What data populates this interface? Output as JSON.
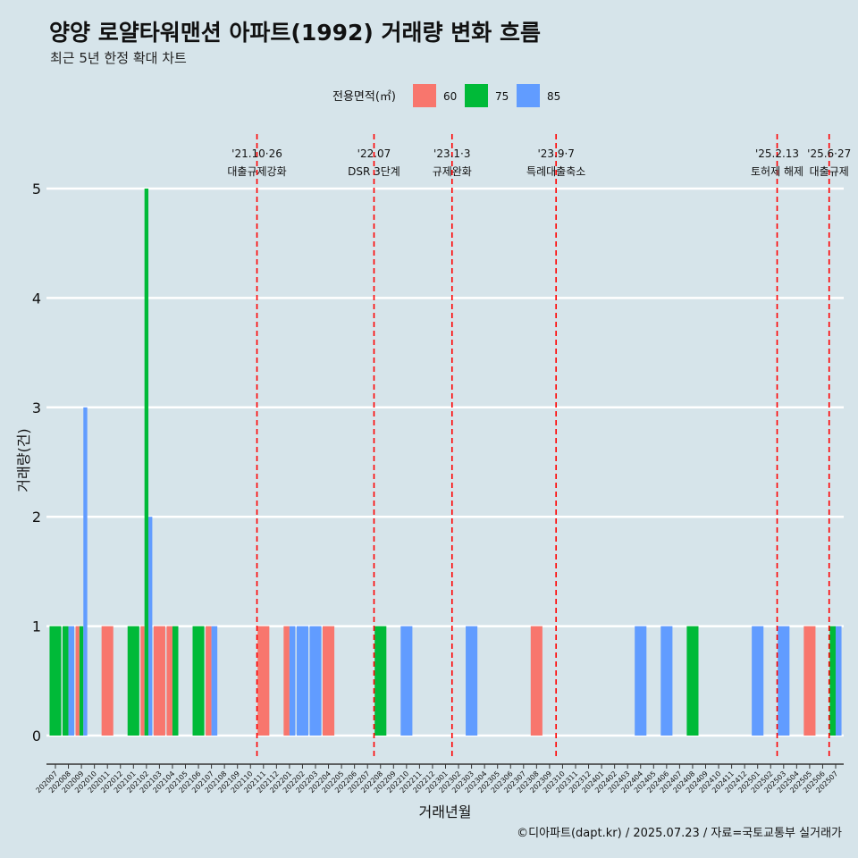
{
  "chart_data": {
    "type": "bar",
    "title": "양양 로얄타워맨션 아파트(1992) 거래량 변화 흐름",
    "subtitle": "최근 5년 한정 확대 차트",
    "xlabel": "거래년월",
    "ylabel": "거래량(건)",
    "ylim": [
      0,
      5
    ],
    "yticks": [
      0,
      1,
      2,
      3,
      4,
      5
    ],
    "grid": true,
    "legend": {
      "title": "전용면적(㎡)",
      "position": "top",
      "items": [
        {
          "name": "60",
          "color": "#F8766D"
        },
        {
          "name": "75",
          "color": "#00BA38"
        },
        {
          "name": "85",
          "color": "#619CFF"
        }
      ]
    },
    "categories": [
      "202007",
      "202008",
      "202009",
      "202010",
      "202011",
      "202012",
      "202101",
      "202102",
      "202103",
      "202104",
      "202105",
      "202106",
      "202107",
      "202108",
      "202109",
      "202110",
      "202111",
      "202112",
      "202201",
      "202202",
      "202203",
      "202204",
      "202205",
      "202206",
      "202207",
      "202208",
      "202209",
      "202210",
      "202211",
      "202212",
      "202301",
      "202302",
      "202303",
      "202304",
      "202305",
      "202306",
      "202307",
      "202308",
      "202309",
      "202310",
      "202311",
      "202312",
      "202401",
      "202402",
      "202403",
      "202404",
      "202405",
      "202406",
      "202407",
      "202408",
      "202409",
      "202410",
      "202411",
      "202412",
      "202501",
      "202502",
      "202503",
      "202504",
      "202505",
      "202506",
      "202507"
    ],
    "bars": [
      {
        "month": "202007",
        "area": "75",
        "value": 1,
        "color": "#00BA38"
      },
      {
        "month": "202008",
        "area": "75",
        "value": 1,
        "color": "#00BA38"
      },
      {
        "month": "202008",
        "area": "85",
        "value": 1,
        "color": "#619CFF"
      },
      {
        "month": "202009",
        "area": "60",
        "value": 1,
        "color": "#F8766D"
      },
      {
        "month": "202009",
        "area": "75",
        "value": 1,
        "color": "#00BA38"
      },
      {
        "month": "202009",
        "area": "85",
        "value": 3,
        "color": "#619CFF"
      },
      {
        "month": "202011",
        "area": "60",
        "value": 1,
        "color": "#F8766D"
      },
      {
        "month": "202101",
        "area": "75",
        "value": 1,
        "color": "#00BA38"
      },
      {
        "month": "202102",
        "area": "60",
        "value": 1,
        "color": "#F8766D"
      },
      {
        "month": "202102",
        "area": "75",
        "value": 5,
        "color": "#00BA38"
      },
      {
        "month": "202102",
        "area": "85",
        "value": 2,
        "color": "#619CFF"
      },
      {
        "month": "202103",
        "area": "60",
        "value": 1,
        "color": "#F8766D"
      },
      {
        "month": "202104",
        "area": "60",
        "value": 1,
        "color": "#F8766D"
      },
      {
        "month": "202104",
        "area": "75",
        "value": 1,
        "color": "#00BA38"
      },
      {
        "month": "202106",
        "area": "75",
        "value": 1,
        "color": "#00BA38"
      },
      {
        "month": "202107",
        "area": "60",
        "value": 1,
        "color": "#F8766D"
      },
      {
        "month": "202107",
        "area": "85",
        "value": 1,
        "color": "#619CFF"
      },
      {
        "month": "202111",
        "area": "60",
        "value": 1,
        "color": "#F8766D"
      },
      {
        "month": "202201",
        "area": "60",
        "value": 1,
        "color": "#F8766D"
      },
      {
        "month": "202201",
        "area": "85",
        "value": 1,
        "color": "#619CFF"
      },
      {
        "month": "202202",
        "area": "85",
        "value": 1,
        "color": "#619CFF"
      },
      {
        "month": "202203",
        "area": "85",
        "value": 1,
        "color": "#619CFF"
      },
      {
        "month": "202204",
        "area": "60",
        "value": 1,
        "color": "#F8766D"
      },
      {
        "month": "202208",
        "area": "75",
        "value": 1,
        "color": "#00BA38"
      },
      {
        "month": "202210",
        "area": "85",
        "value": 1,
        "color": "#619CFF"
      },
      {
        "month": "202303",
        "area": "85",
        "value": 1,
        "color": "#619CFF"
      },
      {
        "month": "202308",
        "area": "60",
        "value": 1,
        "color": "#F8766D"
      },
      {
        "month": "202404",
        "area": "85",
        "value": 1,
        "color": "#619CFF"
      },
      {
        "month": "202406",
        "area": "85",
        "value": 1,
        "color": "#619CFF"
      },
      {
        "month": "202408",
        "area": "75",
        "value": 1,
        "color": "#00BA38"
      },
      {
        "month": "202501",
        "area": "85",
        "value": 1,
        "color": "#619CFF"
      },
      {
        "month": "202503",
        "area": "85",
        "value": 1,
        "color": "#619CFF"
      },
      {
        "month": "202505",
        "area": "60",
        "value": 1,
        "color": "#F8766D"
      },
      {
        "month": "202507",
        "area": "75",
        "value": 1,
        "color": "#00BA38"
      },
      {
        "month": "202507",
        "area": "85",
        "value": 1,
        "color": "#619CFF"
      }
    ],
    "annotations": [
      {
        "month": "202111",
        "date": "'21.10·26",
        "label": "대출규제강화"
      },
      {
        "month": "202208",
        "date": "'22.07",
        "label": "DSR 3단계"
      },
      {
        "month": "202302",
        "date": "'23.1·3",
        "label": "규제완화"
      },
      {
        "month": "202310",
        "date": "'23.9·7",
        "label": "특례대출축소"
      },
      {
        "month": "202503",
        "date": "'25.2.13",
        "label": "토허제 해제"
      },
      {
        "month": "202507",
        "date": "'25.6·27",
        "label": "대출규제"
      }
    ],
    "annotation_color": "#FF0000",
    "bar_width_months": 0.9
  },
  "footer": {
    "credit": "©디아파트(dapt.kr) / 2025.07.23 / 자료=국토교통부 실거래가"
  }
}
